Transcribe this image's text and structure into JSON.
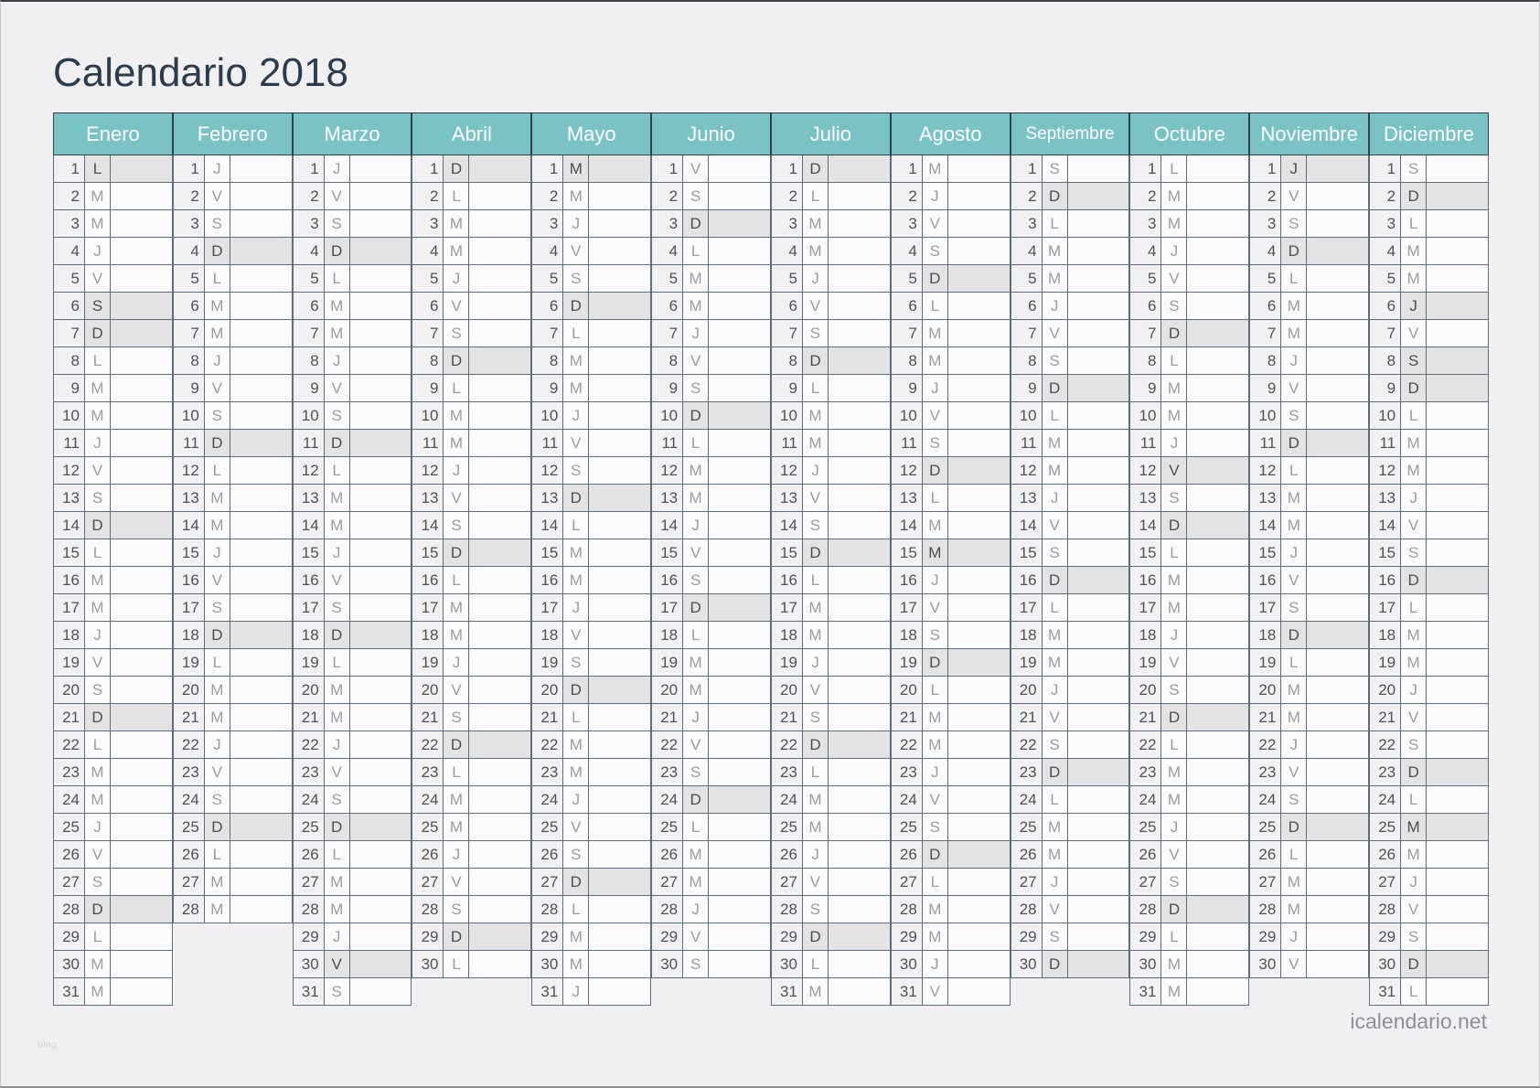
{
  "page": {
    "title": "Calendario 2018",
    "watermark": "icalendario.net",
    "corner_note": "blog"
  },
  "calendar": {
    "year": "2018",
    "dow_letters": [
      "L",
      "M",
      "M",
      "J",
      "V",
      "S",
      "D"
    ],
    "months": [
      {
        "name": "Enero",
        "days": 31,
        "letters": "LMMJVSDLMMJVSDLMMJVSDLMMJVSDLMM",
        "highlighted": [
          1,
          6,
          7,
          14,
          21,
          28
        ]
      },
      {
        "name": "Febrero",
        "days": 28,
        "letters": "JVSDLMMJVSDLMMJVSDLMMJVSDLMM",
        "highlighted": [
          4,
          11,
          18,
          25
        ]
      },
      {
        "name": "Marzo",
        "days": 31,
        "letters": "JVSDLMMJVSDLMMJVSDLMMJVSDLMMJVS",
        "highlighted": [
          4,
          11,
          18,
          25,
          30
        ]
      },
      {
        "name": "Abril",
        "days": 30,
        "letters": "DLMMJVSDLMMJVSDLMMJVSDLMMJVSDL",
        "highlighted": [
          1,
          8,
          15,
          22,
          29
        ]
      },
      {
        "name": "Mayo",
        "days": 31,
        "letters": "MMJVSDLMMJVSDLMMJVSDLMMJVSDLMMJ",
        "highlighted": [
          1,
          6,
          13,
          20,
          27
        ]
      },
      {
        "name": "Junio",
        "days": 30,
        "letters": "VSDLMMJVSDLMMJVSDLMMJVSDLMMJVS",
        "highlighted": [
          3,
          10,
          17,
          24
        ]
      },
      {
        "name": "Julio",
        "days": 31,
        "letters": "DLMMJVSDLMMJVSDLMMJVSDLMMJVSDLM",
        "highlighted": [
          1,
          8,
          15,
          22,
          29
        ]
      },
      {
        "name": "Agosto",
        "days": 31,
        "letters": "MJVSDLMMJVSDLMMJVSDLMMJVSDLMMJV",
        "highlighted": [
          5,
          12,
          15,
          19,
          26
        ]
      },
      {
        "name": "Septiembre",
        "days": 30,
        "letters": "SDLMMJVSDLMMJVSDLMMJVSDLMMJVSD",
        "highlighted": [
          2,
          9,
          16,
          23,
          30
        ]
      },
      {
        "name": "Octubre",
        "days": 31,
        "letters": "LMMJVSDLMMJVSDLMMJVSDLMMJVSDLMM",
        "highlighted": [
          7,
          12,
          14,
          21,
          28
        ]
      },
      {
        "name": "Noviembre",
        "days": 30,
        "letters": "JVSDLMMJVSDLMMJVSDLMMJVSDLMMJV",
        "highlighted": [
          1,
          4,
          11,
          18,
          25
        ]
      },
      {
        "name": "Diciembre",
        "days": 31,
        "letters": "SDLMMJVSDLMMJVSDLMMJVSDLMMJVSDL",
        "highlighted": [
          2,
          6,
          8,
          9,
          16,
          23,
          25,
          30
        ]
      }
    ]
  },
  "colors": {
    "header_teal": "#7ac3c5",
    "header_border": "#2e4152",
    "cell_border": "#5e6d7c",
    "cell_bg": "#fbfbfc",
    "numcell_bg": "#f1f1f3",
    "highlight": "#e3e3e4",
    "title_color": "#2b3c4e",
    "page_bg": "#f0f0f2"
  }
}
